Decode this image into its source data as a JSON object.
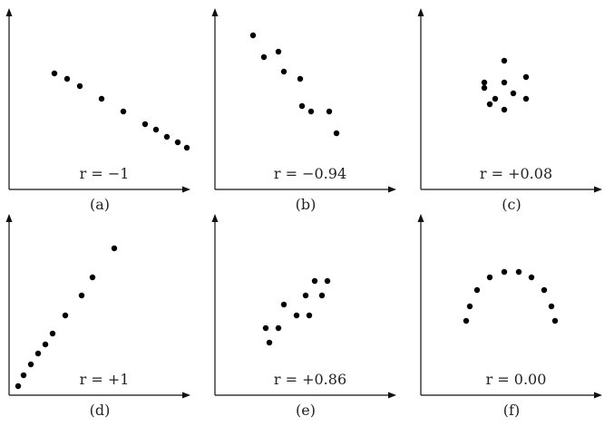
{
  "chart_data": [
    {
      "type": "scatter",
      "caption": "(a)",
      "annotation": "r = −1",
      "xlim": [
        0,
        10
      ],
      "ylim": [
        0,
        10
      ],
      "points": [
        {
          "x": 2.5,
          "y": 6.4
        },
        {
          "x": 3.2,
          "y": 6.1
        },
        {
          "x": 3.9,
          "y": 5.7
        },
        {
          "x": 5.1,
          "y": 5.0
        },
        {
          "x": 6.3,
          "y": 4.3
        },
        {
          "x": 7.5,
          "y": 3.6
        },
        {
          "x": 8.1,
          "y": 3.3
        },
        {
          "x": 8.7,
          "y": 2.9
        },
        {
          "x": 9.3,
          "y": 2.6
        },
        {
          "x": 9.8,
          "y": 2.3
        }
      ]
    },
    {
      "type": "scatter",
      "caption": "(b)",
      "annotation": "r = −0.94",
      "xlim": [
        0,
        10
      ],
      "ylim": [
        0,
        10
      ],
      "points": [
        {
          "x": 2.1,
          "y": 8.5
        },
        {
          "x": 2.7,
          "y": 7.3
        },
        {
          "x": 3.5,
          "y": 7.6
        },
        {
          "x": 3.8,
          "y": 6.5
        },
        {
          "x": 4.7,
          "y": 6.1
        },
        {
          "x": 4.8,
          "y": 4.6
        },
        {
          "x": 5.3,
          "y": 4.3
        },
        {
          "x": 6.3,
          "y": 4.3
        },
        {
          "x": 6.7,
          "y": 3.1
        }
      ]
    },
    {
      "type": "scatter",
      "caption": "(c)",
      "annotation": "r = +0.08",
      "xlim": [
        0,
        10
      ],
      "ylim": [
        0,
        10
      ],
      "points": [
        {
          "x": 3.5,
          "y": 5.9
        },
        {
          "x": 3.5,
          "y": 5.6
        },
        {
          "x": 3.8,
          "y": 4.7
        },
        {
          "x": 4.1,
          "y": 5.0
        },
        {
          "x": 4.6,
          "y": 7.1
        },
        {
          "x": 4.6,
          "y": 5.9
        },
        {
          "x": 4.6,
          "y": 4.4
        },
        {
          "x": 5.1,
          "y": 5.3
        },
        {
          "x": 5.8,
          "y": 6.2
        },
        {
          "x": 5.8,
          "y": 5.0
        }
      ]
    },
    {
      "type": "scatter",
      "caption": "(d)",
      "annotation": "r = +1",
      "xlim": [
        0,
        10
      ],
      "ylim": [
        0,
        10
      ],
      "points": [
        {
          "x": 0.5,
          "y": 0.5
        },
        {
          "x": 0.8,
          "y": 1.1
        },
        {
          "x": 1.2,
          "y": 1.7
        },
        {
          "x": 1.6,
          "y": 2.3
        },
        {
          "x": 2.0,
          "y": 2.8
        },
        {
          "x": 2.4,
          "y": 3.4
        },
        {
          "x": 3.1,
          "y": 4.4
        },
        {
          "x": 4.0,
          "y": 5.5
        },
        {
          "x": 4.6,
          "y": 6.5
        },
        {
          "x": 5.8,
          "y": 8.1
        }
      ]
    },
    {
      "type": "scatter",
      "caption": "(e)",
      "annotation": "r = +0.86",
      "xlim": [
        0,
        10
      ],
      "ylim": [
        0,
        10
      ],
      "points": [
        {
          "x": 2.8,
          "y": 3.7
        },
        {
          "x": 3.0,
          "y": 2.9
        },
        {
          "x": 3.5,
          "y": 3.7
        },
        {
          "x": 3.8,
          "y": 5.0
        },
        {
          "x": 4.5,
          "y": 4.4
        },
        {
          "x": 5.0,
          "y": 5.5
        },
        {
          "x": 5.2,
          "y": 4.4
        },
        {
          "x": 5.5,
          "y": 6.3
        },
        {
          "x": 5.9,
          "y": 5.5
        },
        {
          "x": 6.2,
          "y": 6.3
        }
      ]
    },
    {
      "type": "scatter",
      "caption": "(f)",
      "annotation": "r = 0.00",
      "xlim": [
        0,
        10
      ],
      "ylim": [
        0,
        10
      ],
      "points": [
        {
          "x": 2.5,
          "y": 4.1
        },
        {
          "x": 2.7,
          "y": 4.9
        },
        {
          "x": 3.1,
          "y": 5.8
        },
        {
          "x": 3.8,
          "y": 6.5
        },
        {
          "x": 4.6,
          "y": 6.8
        },
        {
          "x": 5.4,
          "y": 6.8
        },
        {
          "x": 6.1,
          "y": 6.5
        },
        {
          "x": 6.8,
          "y": 5.8
        },
        {
          "x": 7.2,
          "y": 4.9
        },
        {
          "x": 7.4,
          "y": 4.1
        }
      ]
    }
  ]
}
